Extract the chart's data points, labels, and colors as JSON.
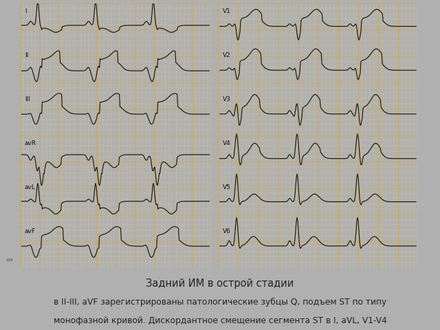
{
  "title_line1": "Задний ИМ в острой стадии",
  "title_line2": "в II-III, aVF зарегистрированы патологические зубцы Q, подъем ST по типу",
  "title_line3": "монофазной кривой. Дискордантное смещение сегмента ST в I, aVL, V1-V4",
  "bg_color": "#b0b0b0",
  "ecg_bg": "#f8f3d8",
  "grid_minor_color": "#e0cc90",
  "grid_major_color": "#c8a850",
  "line_color": "#1a1a0a",
  "text_color": "#222222",
  "label_color": "#111111",
  "left_strip_color": "#909090",
  "right_strip_color": "#909090",
  "leads_left": [
    "I",
    "II",
    "III",
    "avR",
    "avL",
    "avF"
  ],
  "leads_right": [
    "V1",
    "V2",
    "V3",
    "V4",
    "V5",
    "V6"
  ],
  "fig_width": 6.4,
  "fig_height": 4.8,
  "dpi": 100
}
